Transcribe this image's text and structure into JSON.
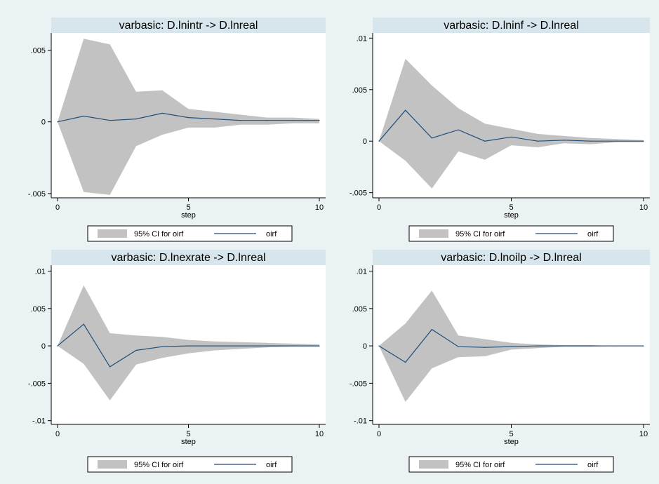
{
  "colors": {
    "background": "#eaf2f3",
    "plot_background": "#ffffff",
    "title_strip": "#d7e6ec",
    "ci_band": "#c2c2c2",
    "line": "#1f4e79",
    "axis": "#000000"
  },
  "legend": {
    "ci_label": "95% CI for oirf",
    "line_label": "oirf"
  },
  "chart_data": [
    {
      "type": "area",
      "title": "varbasic: D.lnintr -> D.lnreal",
      "xlabel": "step",
      "xlim": [
        0,
        10
      ],
      "xticks": [
        0,
        5,
        10
      ],
      "ylim": [
        -0.0053,
        0.0062
      ],
      "yticks": [
        -0.005,
        0,
        0.005
      ],
      "ytick_labels": [
        "-.005",
        "0",
        ".005"
      ],
      "grid": false,
      "legend_position": "bottom",
      "x": [
        0,
        1,
        2,
        3,
        4,
        5,
        6,
        7,
        8,
        9,
        10
      ],
      "series": [
        {
          "name": "95% CI for oirf",
          "kind": "band",
          "lower": [
            0,
            -0.0049,
            -0.0051,
            -0.0017,
            -0.0009,
            -0.0004,
            -0.0004,
            -0.0002,
            -0.0002,
            -0.0001,
            -0.0001
          ],
          "upper": [
            0,
            0.0058,
            0.0054,
            0.0021,
            0.0022,
            0.0009,
            0.0007,
            0.0005,
            0.0003,
            0.0003,
            0.0002
          ]
        },
        {
          "name": "oirf",
          "kind": "line",
          "values": [
            0,
            0.0004,
            0.0001,
            0.0002,
            0.0006,
            0.0003,
            0.0002,
            0.0001,
            0.0001,
            0.0001,
            0.0001
          ]
        }
      ]
    },
    {
      "type": "area",
      "title": "varbasic: D.lninf -> D.lnreal",
      "xlabel": "step",
      "xlim": [
        0,
        10
      ],
      "xticks": [
        0,
        5,
        10
      ],
      "ylim": [
        -0.0055,
        0.0105
      ],
      "yticks": [
        -0.005,
        0,
        0.005,
        0.01
      ],
      "ytick_labels": [
        "-.005",
        "0",
        ".005",
        ".01"
      ],
      "grid": false,
      "legend_position": "bottom",
      "x": [
        0,
        1,
        2,
        3,
        4,
        5,
        6,
        7,
        8,
        9,
        10
      ],
      "series": [
        {
          "name": "95% CI for oirf",
          "kind": "band",
          "lower": [
            0,
            -0.0019,
            -0.0046,
            -0.001,
            -0.0018,
            -0.0004,
            -0.0006,
            -0.0002,
            -0.0003,
            -0.0001,
            -0.0001
          ],
          "upper": [
            0,
            0.008,
            0.0054,
            0.0032,
            0.0017,
            0.0012,
            0.0007,
            0.0005,
            0.0003,
            0.0002,
            0.0001
          ]
        },
        {
          "name": "oirf",
          "kind": "line",
          "values": [
            0,
            0.003,
            0.0003,
            0.0011,
            0,
            0.0004,
            0,
            0.0001,
            0,
            0,
            0
          ]
        }
      ]
    },
    {
      "type": "area",
      "title": "varbasic: D.lnexrate -> D.lnreal",
      "xlabel": "step",
      "xlim": [
        0,
        10
      ],
      "xticks": [
        0,
        5,
        10
      ],
      "ylim": [
        -0.0105,
        0.0108
      ],
      "yticks": [
        -0.01,
        -0.005,
        0,
        0.005,
        0.01
      ],
      "ytick_labels": [
        "-.01",
        "-.005",
        "0",
        ".005",
        ".01"
      ],
      "grid": false,
      "legend_position": "bottom",
      "x": [
        0,
        1,
        2,
        3,
        4,
        5,
        6,
        7,
        8,
        9,
        10
      ],
      "series": [
        {
          "name": "95% CI for oirf",
          "kind": "band",
          "lower": [
            0,
            -0.0024,
            -0.0073,
            -0.0025,
            -0.0016,
            -0.001,
            -0.0006,
            -0.0004,
            -0.0002,
            -0.0001,
            -0.0001
          ],
          "upper": [
            0,
            0.0081,
            0.0017,
            0.0014,
            0.0012,
            0.0008,
            0.0006,
            0.0005,
            0.0004,
            0.0003,
            0.0002
          ]
        },
        {
          "name": "oirf",
          "kind": "line",
          "values": [
            0,
            0.0029,
            -0.0028,
            -0.0006,
            -0.0001,
            0,
            0,
            0,
            0,
            0,
            0
          ]
        }
      ]
    },
    {
      "type": "area",
      "title": "varbasic: D.lnoilp -> D.lnreal",
      "xlabel": "step",
      "xlim": [
        0,
        10
      ],
      "xticks": [
        0,
        5,
        10
      ],
      "ylim": [
        -0.0105,
        0.0108
      ],
      "yticks": [
        -0.01,
        -0.005,
        0,
        0.005,
        0.01
      ],
      "ytick_labels": [
        "-.01",
        "-.005",
        "0",
        ".005",
        ".01"
      ],
      "grid": false,
      "legend_position": "bottom",
      "x": [
        0,
        1,
        2,
        3,
        4,
        5,
        6,
        7,
        8,
        9,
        10
      ],
      "series": [
        {
          "name": "95% CI for oirf",
          "kind": "band",
          "lower": [
            0,
            -0.0075,
            -0.003,
            -0.0015,
            -0.0014,
            -0.0005,
            -0.0003,
            -0.0001,
            -0.0001,
            0,
            0
          ],
          "upper": [
            0,
            0.003,
            0.0074,
            0.0014,
            0.0009,
            0.0004,
            0.0002,
            0.0001,
            0.0001,
            0,
            0
          ]
        },
        {
          "name": "oirf",
          "kind": "line",
          "values": [
            0,
            -0.0022,
            0.0022,
            -0.0001,
            -0.0002,
            -0.0001,
            0,
            0,
            0,
            0,
            0
          ]
        }
      ]
    }
  ]
}
